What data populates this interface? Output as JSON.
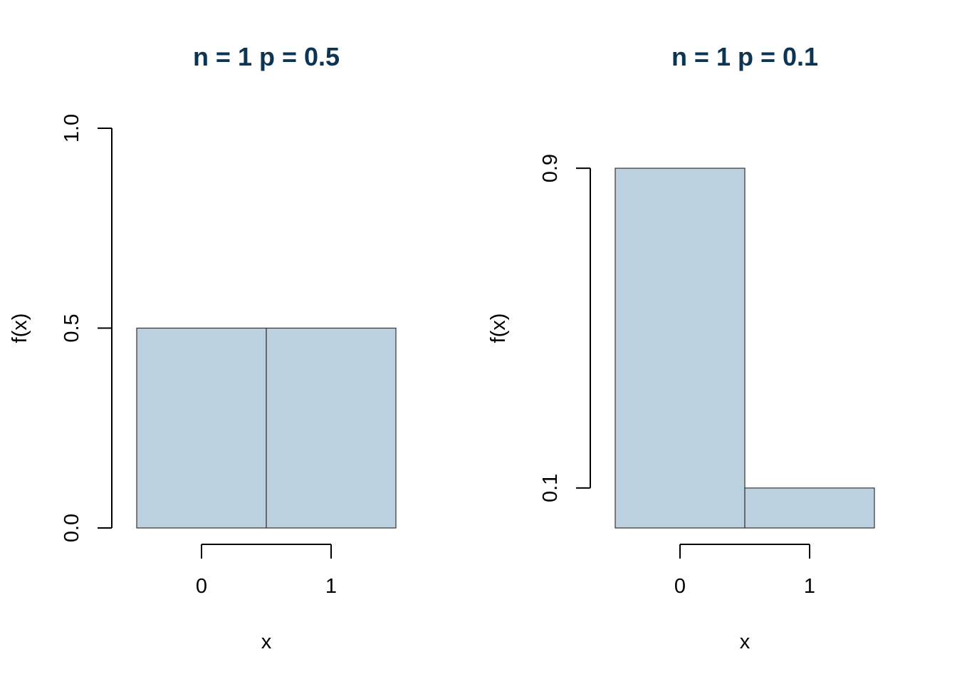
{
  "chart_data": [
    {
      "type": "bar",
      "title": "n = 1 p = 0.5",
      "xlabel": "x",
      "ylabel": "f(x)",
      "categories": [
        "0",
        "1"
      ],
      "x": [
        0,
        1
      ],
      "values": [
        0.5,
        0.5
      ],
      "ylim": [
        0,
        1
      ],
      "yticks": [
        0.0,
        0.5,
        1.0
      ],
      "ytick_labels": [
        "0.0",
        "0.5",
        "1.0"
      ],
      "xticks": [
        0,
        1
      ],
      "xtick_labels": [
        "0",
        "1"
      ],
      "bar_color": "#bcd1df",
      "grid": false
    },
    {
      "type": "bar",
      "title": "n = 1 p = 0.1",
      "xlabel": "x",
      "ylabel": "f(x)",
      "categories": [
        "0",
        "1"
      ],
      "x": [
        0,
        1
      ],
      "values": [
        0.9,
        0.1
      ],
      "ylim": [
        0,
        1
      ],
      "yticks": [
        0.1,
        0.9
      ],
      "ytick_labels": [
        "0.1",
        "0.9"
      ],
      "xticks": [
        0,
        1
      ],
      "xtick_labels": [
        "0",
        "1"
      ],
      "bar_color": "#bcd1df",
      "grid": false
    }
  ]
}
